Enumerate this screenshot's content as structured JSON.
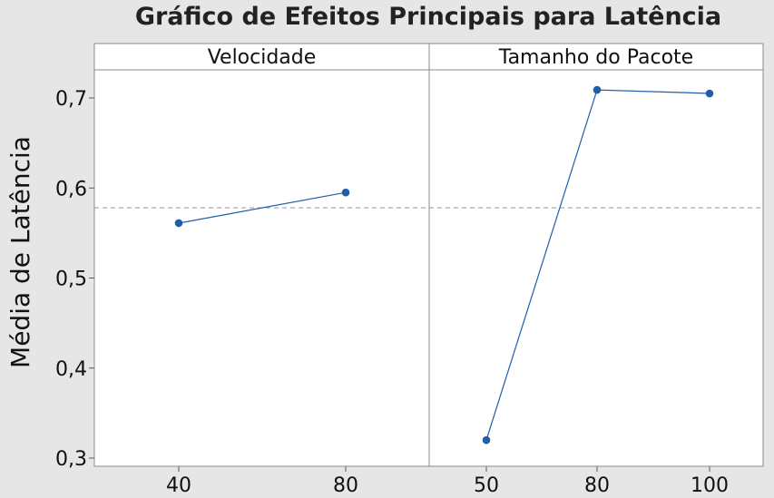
{
  "chart_data": {
    "type": "line",
    "title": "Gráfico de Efeitos Principais para Latência",
    "ylabel": "Média de Latência",
    "ylim": [
      0.3,
      0.7
    ],
    "yticks": [
      {
        "value": 0.3,
        "label": "0,3"
      },
      {
        "value": 0.4,
        "label": "0,4"
      },
      {
        "value": 0.5,
        "label": "0,5"
      },
      {
        "value": 0.6,
        "label": "0,6"
      },
      {
        "value": 0.7,
        "label": "0,7"
      }
    ],
    "overall_mean": 0.578,
    "grid": false,
    "series_color": "#1f5fa8",
    "reference_line_color": "#a0a0a0",
    "panels": [
      {
        "name": "Velocidade",
        "categories": [
          "40",
          "80"
        ],
        "values": [
          0.561,
          0.595
        ]
      },
      {
        "name": "Tamanho do Pacote",
        "categories": [
          "50",
          "80",
          "100"
        ],
        "values": [
          0.32,
          0.709,
          0.705
        ]
      }
    ]
  }
}
